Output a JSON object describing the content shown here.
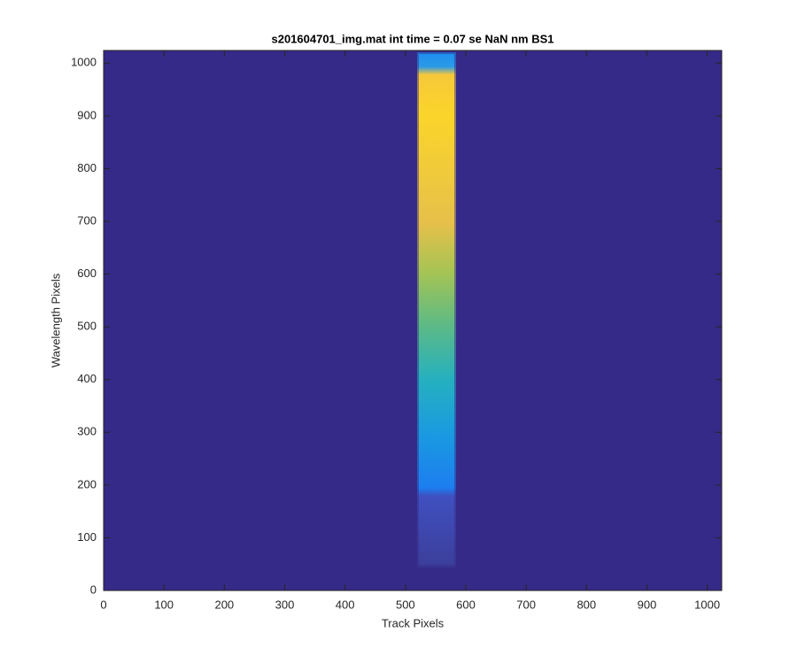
{
  "chart_data": {
    "type": "image",
    "title": "s201604701_img.mat int time = 0.07 se  NaN nm BS1",
    "x_label": "Track Pixels",
    "y_label": "Wavelength Pixels",
    "xlim": [
      0,
      1024
    ],
    "ylim": [
      0,
      1024
    ],
    "xticks": [
      0,
      100,
      200,
      300,
      400,
      500,
      600,
      700,
      800,
      900,
      1000
    ],
    "yticks": [
      0,
      100,
      200,
      300,
      400,
      500,
      600,
      700,
      800,
      900,
      1000
    ],
    "background_color": "#352a87"
  }
}
